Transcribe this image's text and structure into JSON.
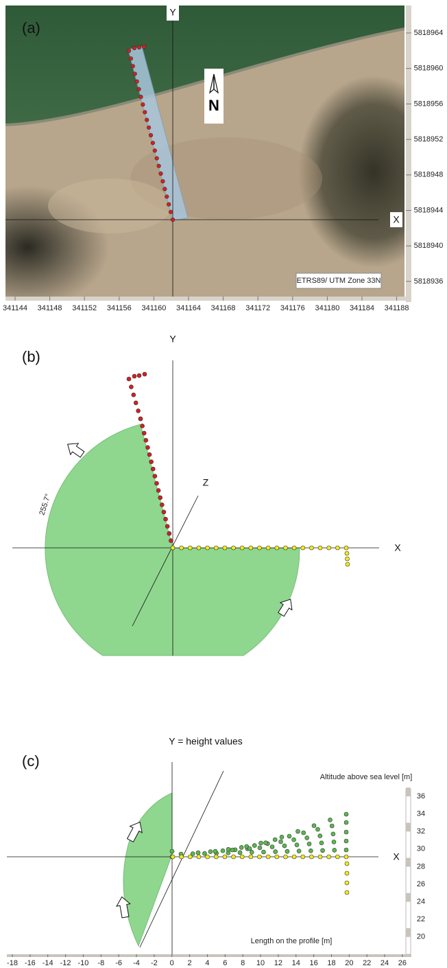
{
  "panel_a": {
    "label": "(a)",
    "y_axis": "Y",
    "x_axis": "X",
    "north": "N",
    "crs": "ETRS89/ UTM Zone 33N",
    "northing_ticks": [
      5818964,
      5818960,
      5818956,
      5818952,
      5818948,
      5818944,
      5818940,
      5818936
    ],
    "easting_ticks": [
      341144,
      341148,
      341152,
      341156,
      341160,
      341164,
      341168,
      341172,
      341176,
      341180,
      341184,
      341188
    ]
  },
  "panel_b": {
    "label": "(b)",
    "y_axis": "Y",
    "z_axis": "Z",
    "x_axis": "X",
    "angle": "255.7°"
  },
  "panel_c": {
    "label": "(c)",
    "y_axis": "Y = height values",
    "x_axis": "X",
    "altitude_label": "Altitude above sea level [m]",
    "length_label": "Length on the profile [m]",
    "altitude_ticks": [
      36,
      34,
      32,
      30,
      28,
      26,
      24,
      22,
      20
    ],
    "length_ticks": [
      -18,
      -16,
      -14,
      -12,
      -10,
      -8,
      -6,
      -4,
      -2,
      0,
      2,
      4,
      6,
      8,
      10,
      12,
      14,
      16,
      18,
      20,
      22,
      24,
      26
    ]
  }
}
